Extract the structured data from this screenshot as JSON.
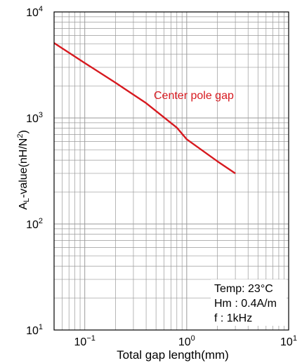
{
  "chart_data": {
    "type": "line",
    "xscale": "log",
    "yscale": "log",
    "xlim": [
      0.05,
      10
    ],
    "ylim": [
      10,
      10000
    ],
    "grid": true,
    "xlabel": "Total gap length(mm)",
    "ylabel_main": "A",
    "ylabel_sub": "L",
    "ylabel_rest": "-value(nH/N",
    "ylabel_sup": "2",
    "ylabel_end": ")",
    "x_ticks": [
      {
        "value": 0.1,
        "base": "10",
        "exp": "−1"
      },
      {
        "value": 1,
        "base": "10",
        "exp": "0"
      },
      {
        "value": 10,
        "base": "10",
        "exp": "1"
      }
    ],
    "y_ticks": [
      {
        "value": 10,
        "base": "10",
        "exp": "1"
      },
      {
        "value": 100,
        "base": "10",
        "exp": "2"
      },
      {
        "value": 1000,
        "base": "10",
        "exp": "3"
      },
      {
        "value": 10000,
        "base": "10",
        "exp": "4"
      }
    ],
    "series": [
      {
        "name": "Center pole gap",
        "color": "#d7191f",
        "x": [
          0.05,
          0.1,
          0.2,
          0.4,
          0.8,
          1.0,
          2.0,
          3.0
        ],
        "y": [
          5100,
          3300,
          2150,
          1380,
          810,
          630,
          390,
          300
        ]
      }
    ],
    "annotation": {
      "lines": [
        "Temp: 23°C",
        "Hm : 0.4A/m",
        "f : 1kHz"
      ]
    }
  }
}
